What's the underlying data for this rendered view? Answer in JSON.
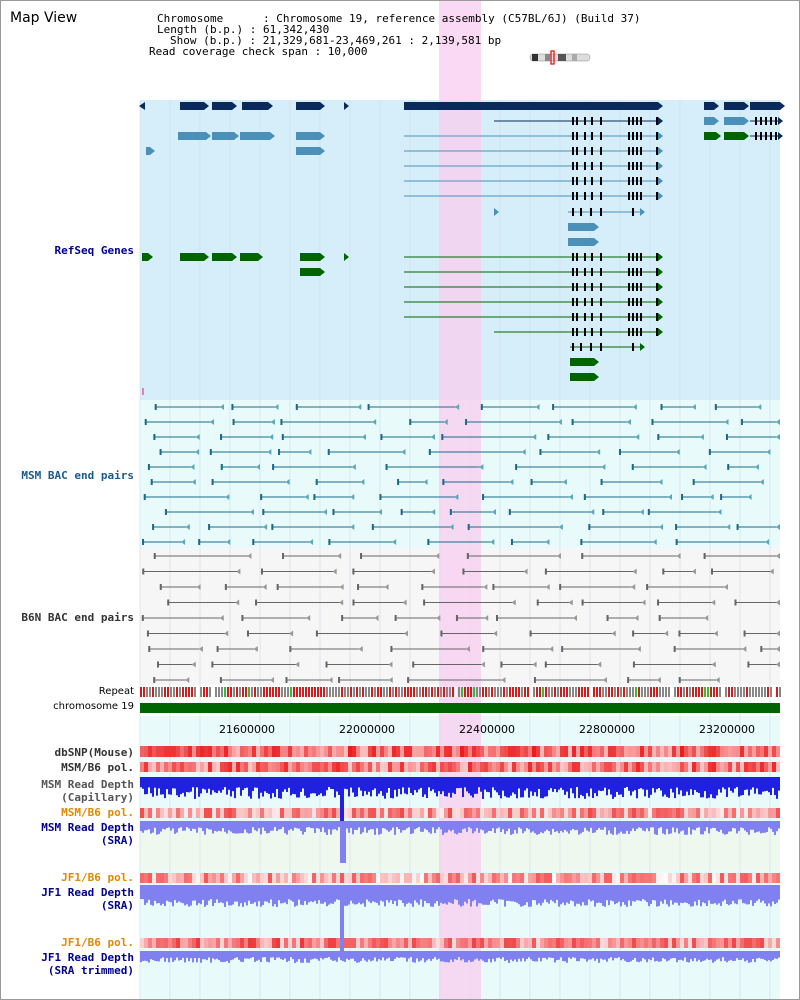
{
  "view_title": "Map View",
  "info": {
    "chromosome": "Chromosome      : Chromosome 19, reference assembly (C57BL/6J) (Build 37)",
    "length": "Length (b.p.) : 61,342,430",
    "show": "Show (b.p.) : 21,329,681-23,469,261 : 2,139,581 bp",
    "coverage": "Read coverage check span : 10,000"
  },
  "tracks": {
    "refseq": "RefSeq Genes",
    "msm_bac": "MSM BAC end pairs",
    "b6n_bac": "B6N BAC end pairs",
    "repeat": "Repeat",
    "chromosome": "chromosome 19",
    "dbsnp": "dbSNP(Mouse)",
    "msm_b6_pol_1": "MSM/B6 pol.",
    "msm_depth_cap": "MSM Read Depth\n(Capillary)",
    "msm_b6_pol_2": "MSM/B6 pol.",
    "msm_depth_sra": "MSM Read Depth\n(SRA)",
    "jf1_b6_pol_1": "JF1/B6 pol.",
    "jf1_depth_sra": "JF1 Read Depth\n(SRA)",
    "jf1_b6_pol_2": "JF1/B6 pol.",
    "jf1_depth_trim": "JF1 Read Depth\n(SRA trimmed)"
  },
  "axis_ticks": [
    "21600000",
    "22000000",
    "22400000",
    "22800000",
    "23200000"
  ],
  "colors": {
    "refseq_bg": "#d6eefa",
    "bac_bg": "#e8fafa",
    "highlight": "#f8d0f0",
    "gene_dark": "#0a2a5c",
    "gene_mid": "#4a90b8",
    "gene_green": "#006400",
    "msm_line": "#1a6a8a",
    "b6n_line": "#666666",
    "label_blue": "#00008b",
    "label_orange": "#e08a00",
    "label_gray": "#333333",
    "chrom_green": "#006400",
    "depth_blue": "#2020e0",
    "depth_light": "#8080f0",
    "pol_red": "#e83030"
  }
}
